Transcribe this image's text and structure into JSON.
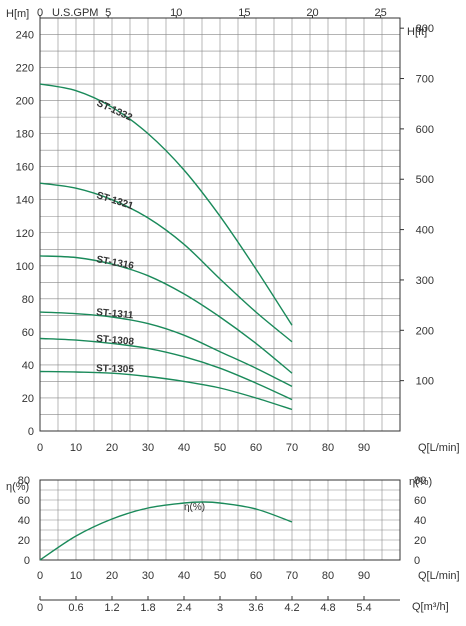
{
  "chart_data": [
    {
      "type": "line",
      "name_key": "head",
      "top_axis_label": "U.S.GPM",
      "top_ticks": [
        "0",
        "5",
        "10",
        "15",
        "20",
        "25"
      ],
      "top_tick_values": [
        0,
        5,
        10,
        15,
        20,
        25
      ],
      "left_axis_label": "H[m]",
      "left_ticks": [
        0,
        20,
        40,
        60,
        80,
        100,
        120,
        140,
        160,
        180,
        200,
        220,
        240
      ],
      "right_axis_label": "H[ft]",
      "right_ticks": [
        100,
        200,
        300,
        400,
        500,
        600,
        700,
        800
      ],
      "xlabel": "Q[L/min]",
      "xticks": [
        0,
        10,
        20,
        30,
        40,
        50,
        60,
        70,
        80,
        90
      ],
      "xlim": [
        0,
        100
      ],
      "ylim": [
        0,
        250
      ],
      "grid": true,
      "series": [
        {
          "name": "ST-1332",
          "x": [
            0,
            10,
            20,
            30,
            40,
            50,
            60,
            70
          ],
          "y": [
            210,
            206,
            196,
            180,
            158,
            130,
            98,
            64
          ]
        },
        {
          "name": "ST-1321",
          "x": [
            0,
            10,
            20,
            30,
            40,
            50,
            60,
            70
          ],
          "y": [
            150,
            147,
            140,
            129,
            113,
            92,
            72,
            54
          ]
        },
        {
          "name": "ST-1316",
          "x": [
            0,
            10,
            20,
            30,
            40,
            50,
            60,
            70
          ],
          "y": [
            106,
            105,
            101,
            94,
            83,
            69,
            53,
            35
          ]
        },
        {
          "name": "ST-1311",
          "x": [
            0,
            10,
            20,
            30,
            40,
            50,
            60,
            70
          ],
          "y": [
            72,
            71,
            69,
            65,
            58,
            48,
            38,
            27
          ]
        },
        {
          "name": "ST-1308",
          "x": [
            0,
            10,
            20,
            30,
            40,
            50,
            60,
            70
          ],
          "y": [
            56,
            55,
            53,
            50,
            45,
            38,
            29,
            19
          ]
        },
        {
          "name": "ST-1305",
          "x": [
            0,
            10,
            20,
            30,
            40,
            50,
            60,
            70
          ],
          "y": [
            36,
            35.7,
            35,
            33,
            30,
            26,
            20,
            13
          ]
        }
      ]
    },
    {
      "type": "line",
      "name_key": "efficiency",
      "left_axis_label": "η(%)",
      "right_axis_label": "η(%)",
      "left_ticks": [
        0,
        20,
        40,
        60,
        80
      ],
      "right_ticks": [
        0,
        20,
        40,
        60,
        80
      ],
      "xlabel": "Q[L/min]",
      "xticks": [
        0,
        10,
        20,
        30,
        40,
        50,
        60,
        70,
        80,
        90
      ],
      "xlim": [
        0,
        100
      ],
      "ylim": [
        0,
        80
      ],
      "grid": true,
      "series": [
        {
          "name": "η(%)",
          "x": [
            0,
            10,
            20,
            30,
            40,
            45,
            50,
            60,
            70
          ],
          "y": [
            0,
            24,
            41,
            52,
            57,
            58,
            57,
            51,
            38
          ]
        }
      ]
    }
  ],
  "flow_axis": {
    "label": "Q[m³/h]",
    "ticks": [
      "0",
      "0.6",
      "1.2",
      "1.8",
      "2.4",
      "3",
      "3.6",
      "4.2",
      "4.8",
      "5.4"
    ],
    "values": [
      0,
      0.6,
      1.2,
      1.8,
      2.4,
      3,
      3.6,
      4.2,
      4.8,
      5.4
    ],
    "max": 6
  },
  "colors": {
    "curve": "#1a8a5a",
    "label": "#1a8a5a",
    "grid": "#888888",
    "frame": "#333333",
    "text": "#333333"
  }
}
